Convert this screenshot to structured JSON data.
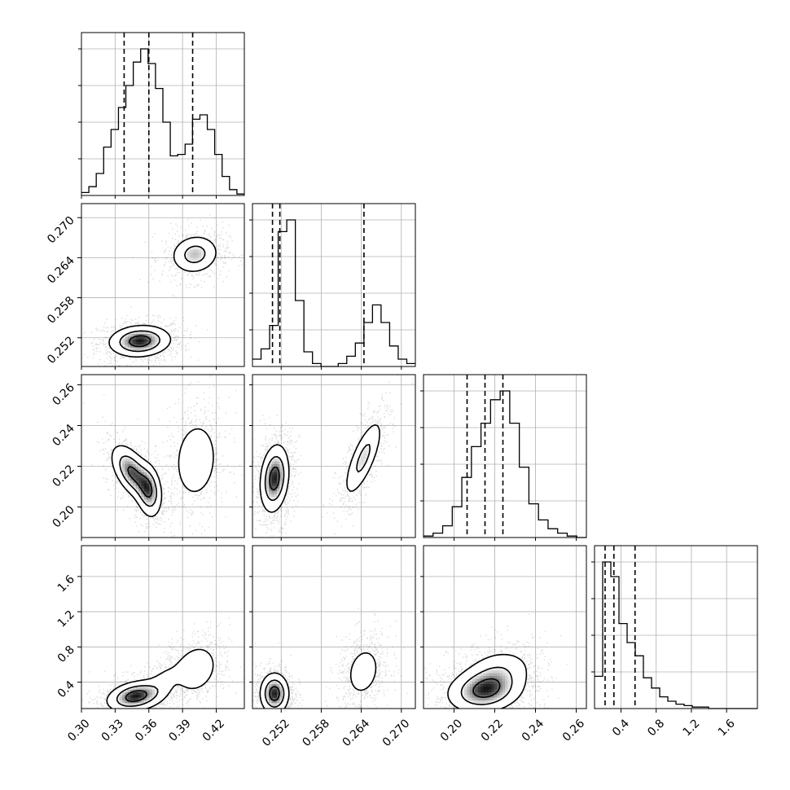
{
  "chart_data": {
    "type": "corner",
    "title": "",
    "grid": true,
    "parameters": [
      {
        "index": 0,
        "range": [
          0.3,
          0.445
        ],
        "ticks": [
          0.3,
          0.33,
          0.36,
          0.39,
          0.42
        ],
        "tick_labels": [
          "0.30",
          "0.33",
          "0.36",
          "0.39",
          "0.42"
        ],
        "quantiles": [
          0.338,
          0.36,
          0.399
        ]
      },
      {
        "index": 1,
        "range": [
          0.2477,
          0.2721
        ],
        "ticks": [
          0.252,
          0.258,
          0.264,
          0.27
        ],
        "tick_labels": [
          "0.252",
          "0.258",
          "0.264",
          "0.270"
        ],
        "quantiles": [
          0.2507,
          0.2518,
          0.2644
        ]
      },
      {
        "index": 2,
        "range": [
          0.185,
          0.265
        ],
        "ticks": [
          0.2,
          0.22,
          0.24,
          0.26
        ],
        "tick_labels": [
          "0.20",
          "0.22",
          "0.24",
          "0.26"
        ],
        "quantiles": [
          0.2064,
          0.2152,
          0.224
        ]
      },
      {
        "index": 3,
        "range": [
          0.1,
          1.95
        ],
        "ticks": [
          0.4,
          0.8,
          1.2,
          1.6
        ],
        "tick_labels": [
          "0.4",
          "0.8",
          "1.2",
          "1.6"
        ],
        "quantiles": [
          0.22,
          0.32,
          0.56
        ]
      }
    ],
    "histograms": [
      {
        "param": 0,
        "density": [
          0.02,
          0.06,
          0.15,
          0.33,
          0.45,
          0.6,
          0.75,
          0.91,
          1.0,
          0.9,
          0.73,
          0.5,
          0.27,
          0.28,
          0.35,
          0.52,
          0.55,
          0.45,
          0.28,
          0.13,
          0.04,
          0.01
        ]
      },
      {
        "param": 1,
        "density": [
          0.05,
          0.12,
          0.28,
          0.92,
          1.0,
          0.45,
          0.1,
          0.02,
          0.0,
          0.0,
          0.02,
          0.07,
          0.16,
          0.3,
          0.42,
          0.3,
          0.14,
          0.05,
          0.02
        ]
      },
      {
        "param": 2,
        "density": [
          0.01,
          0.03,
          0.08,
          0.21,
          0.41,
          0.62,
          0.78,
          0.94,
          1.0,
          0.78,
          0.48,
          0.23,
          0.12,
          0.06,
          0.03,
          0.01,
          0.0
        ]
      },
      {
        "param": 3,
        "density": [
          0.22,
          1.0,
          0.9,
          0.58,
          0.45,
          0.36,
          0.21,
          0.14,
          0.08,
          0.05,
          0.03,
          0.02,
          0.01,
          0.01,
          0.0,
          0.0,
          0.0,
          0.0,
          0.0,
          0.0
        ]
      }
    ],
    "pairs": [
      {
        "x": 0,
        "y": 1,
        "modes": [
          {
            "cx": 0.352,
            "cy": 0.2515,
            "sx": 0.014,
            "sy": 0.0012,
            "rho": 0.1,
            "w": 0.62
          },
          {
            "cx": 0.401,
            "cy": 0.2645,
            "sx": 0.011,
            "sy": 0.0015,
            "rho": 0.1,
            "w": 0.38
          }
        ]
      },
      {
        "x": 0,
        "y": 2,
        "modes": [
          {
            "cx": 0.345,
            "cy": 0.217,
            "sx": 0.0095,
            "sy": 0.007,
            "rho": -0.55,
            "w": 0.38
          },
          {
            "cx": 0.36,
            "cy": 0.208,
            "sx": 0.006,
            "sy": 0.007,
            "rho": -0.2,
            "w": 0.24
          },
          {
            "cx": 0.402,
            "cy": 0.223,
            "sx": 0.011,
            "sy": 0.011,
            "rho": 0.1,
            "w": 0.38
          }
        ]
      },
      {
        "x": 1,
        "y": 2,
        "modes": [
          {
            "cx": 0.251,
            "cy": 0.214,
            "sx": 0.0011,
            "sy": 0.0085,
            "rho": 0.2,
            "w": 0.62
          },
          {
            "cx": 0.2643,
            "cy": 0.224,
            "sx": 0.0015,
            "sy": 0.01,
            "rho": 0.75,
            "w": 0.38
          }
        ]
      },
      {
        "x": 0,
        "y": 3,
        "modes": [
          {
            "cx": 0.348,
            "cy": 0.24,
            "sx": 0.013,
            "sy": 0.09,
            "rho": 0.3,
            "w": 0.55
          },
          {
            "cx": 0.372,
            "cy": 0.4,
            "sx": 0.01,
            "sy": 0.15,
            "rho": 0.5,
            "w": 0.12
          },
          {
            "cx": 0.402,
            "cy": 0.55,
            "sx": 0.011,
            "sy": 0.16,
            "rho": 0.2,
            "w": 0.33
          }
        ]
      },
      {
        "x": 1,
        "y": 3,
        "modes": [
          {
            "cx": 0.251,
            "cy": 0.27,
            "sx": 0.0011,
            "sy": 0.12,
            "rho": 0.0,
            "w": 0.62
          },
          {
            "cx": 0.2643,
            "cy": 0.52,
            "sx": 0.0015,
            "sy": 0.17,
            "rho": 0.2,
            "w": 0.38
          }
        ]
      },
      {
        "x": 2,
        "y": 3,
        "modes": [
          {
            "cx": 0.215,
            "cy": 0.3,
            "sx": 0.0095,
            "sy": 0.13,
            "rho": 0.15,
            "w": 0.7
          },
          {
            "cx": 0.222,
            "cy": 0.52,
            "sx": 0.009,
            "sy": 0.14,
            "rho": 0.2,
            "w": 0.3
          }
        ]
      }
    ],
    "contour_levels": [
      0.15,
      0.45,
      0.8
    ]
  }
}
